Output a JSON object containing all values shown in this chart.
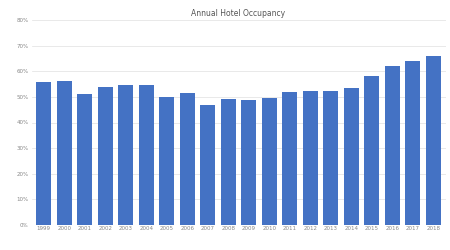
{
  "title": "Annual Hotel Occupancy",
  "years": [
    1999,
    2000,
    2001,
    2002,
    2003,
    2004,
    2005,
    2006,
    2007,
    2008,
    2009,
    2010,
    2011,
    2012,
    2013,
    2014,
    2015,
    2016,
    2017,
    2018
  ],
  "values": [
    0.558,
    0.563,
    0.51,
    0.54,
    0.545,
    0.548,
    0.5,
    0.515,
    0.47,
    0.49,
    0.487,
    0.497,
    0.52,
    0.522,
    0.522,
    0.535,
    0.58,
    0.62,
    0.64,
    0.66
  ],
  "bar_color": "#4472C4",
  "ylim": [
    0,
    0.8
  ],
  "yticks": [
    0.0,
    0.1,
    0.2,
    0.3,
    0.4,
    0.5,
    0.6,
    0.7,
    0.8
  ],
  "title_fontsize": 5.5,
  "tick_fontsize": 4.0,
  "background_color": "#ffffff",
  "grid_color": "#e0e0e0",
  "bar_width": 0.75
}
